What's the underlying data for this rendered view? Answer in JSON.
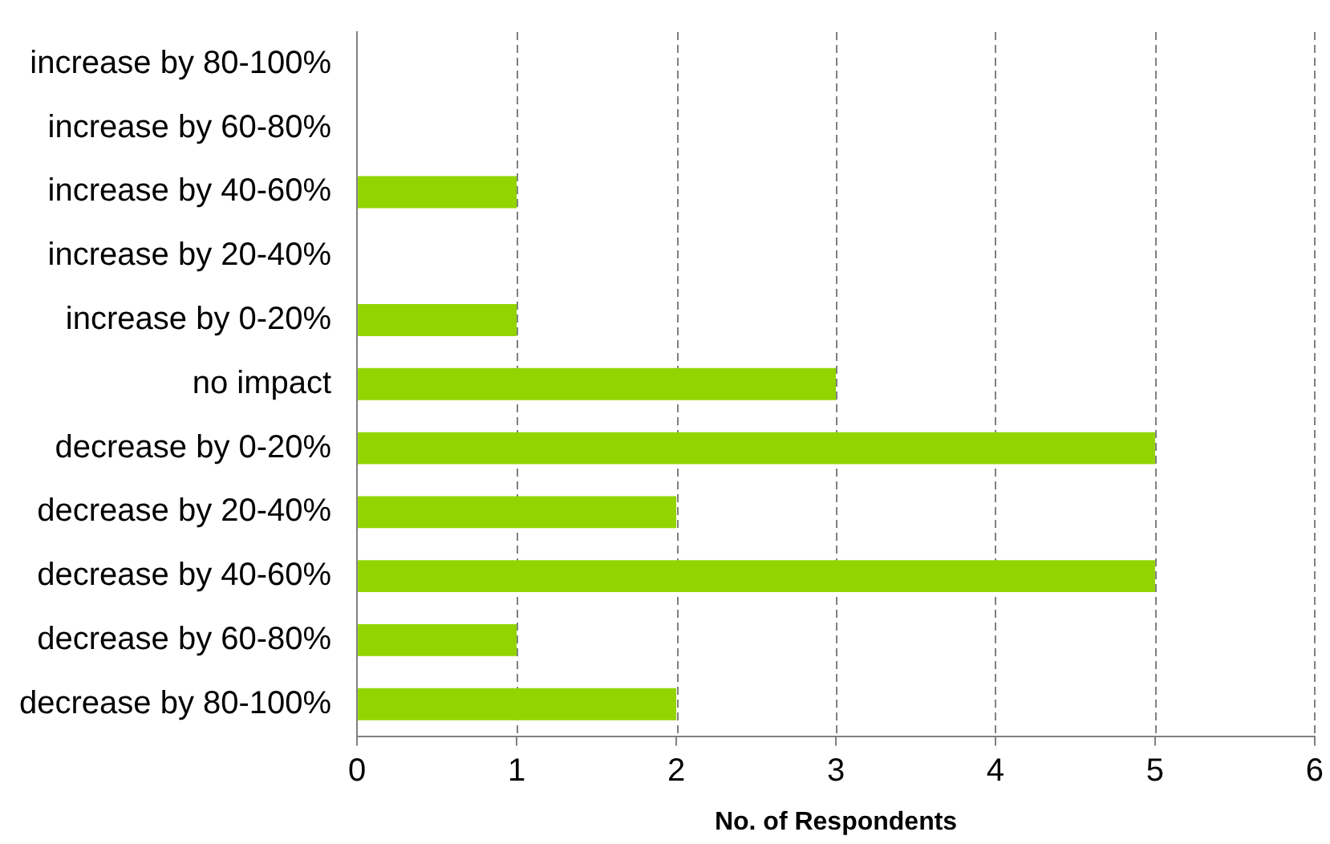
{
  "chart_data": {
    "type": "bar",
    "orientation": "horizontal",
    "xlabel": "No. of Respondents",
    "categories": [
      "increase by 80-100%",
      "increase by 60-80%",
      "increase by 40-60%",
      "increase by 20-40%",
      "increase by 0-20%",
      "no impact",
      "decrease by 0-20%",
      "decrease by 20-40%",
      "decrease by 40-60%",
      "decrease by 60-80%",
      "decrease by 80-100%"
    ],
    "values": [
      0,
      0,
      1,
      0,
      1,
      3,
      5,
      2,
      5,
      1,
      2
    ],
    "color": "#92d400",
    "xlim": [
      0,
      6
    ],
    "xticks": [
      0,
      1,
      2,
      3,
      4,
      5,
      6
    ],
    "grid": "x",
    "legend": false
  }
}
